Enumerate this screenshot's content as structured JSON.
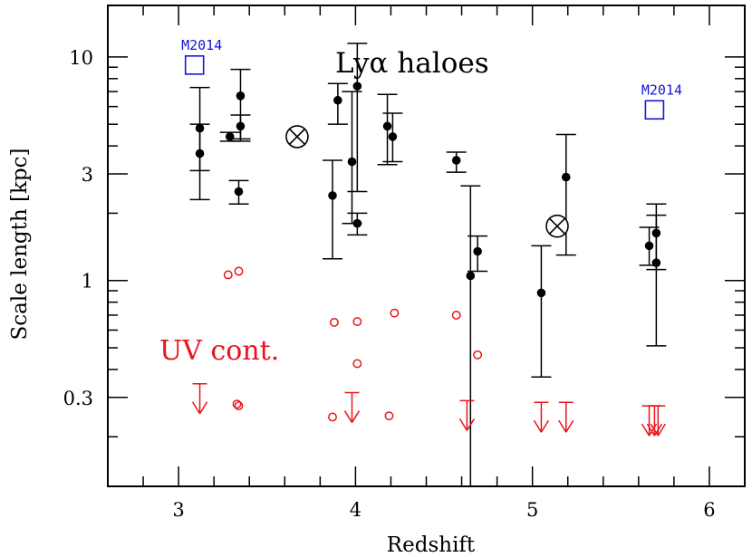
{
  "chart_data": {
    "type": "scatter",
    "xlabel": "Redshift",
    "ylabel": "Scale length [kpc]",
    "xlim": [
      2.6,
      6.2
    ],
    "ylim": [
      0.12,
      17
    ],
    "yscale": "log",
    "x_ticks": [
      3,
      4,
      5,
      6
    ],
    "x_tick_labels": [
      "3",
      "4",
      "5",
      "6"
    ],
    "y_ticks": [
      0.3,
      1,
      3,
      10
    ],
    "y_tick_labels": [
      "0.3",
      "1",
      "3",
      "10"
    ],
    "annotations": {
      "title": "Lyα haloes",
      "uv_label": "UV cont.",
      "m2014_label": "M2014"
    },
    "colors": {
      "halo": "#000000",
      "uv": "#e8141b",
      "m2014": "#1414d8"
    },
    "series": [
      {
        "marker": "filled-circle-with-errorbars",
        "points": [
          {
            "x": 3.12,
            "y": 4.8,
            "ylo": 3.1,
            "yhi": 7.3
          },
          {
            "x": 3.12,
            "y": 3.7,
            "ylo": 2.3,
            "yhi": 5.0
          },
          {
            "x": 3.29,
            "y": 4.4,
            "ylo": 4.2,
            "yhi": 4.6
          },
          {
            "x": 3.34,
            "y": 2.5,
            "ylo": 2.2,
            "yhi": 2.8
          },
          {
            "x": 3.35,
            "y": 6.7,
            "ylo": 4.3,
            "yhi": 8.8
          },
          {
            "x": 3.35,
            "y": 4.9,
            "ylo": 4.2,
            "yhi": 5.5
          },
          {
            "x": 3.87,
            "y": 2.4,
            "ylo": 1.25,
            "yhi": 3.45
          },
          {
            "x": 3.9,
            "y": 6.4,
            "ylo": 5.0,
            "yhi": 7.6
          },
          {
            "x": 3.98,
            "y": 3.4,
            "ylo": 1.8,
            "yhi": 7.0
          },
          {
            "x": 4.01,
            "y": 7.4,
            "ylo": 2.5,
            "yhi": 11.5
          },
          {
            "x": 4.01,
            "y": 1.8,
            "ylo": 1.6,
            "yhi": 2.0
          },
          {
            "x": 4.18,
            "y": 4.9,
            "ylo": 3.3,
            "yhi": 6.8
          },
          {
            "x": 4.21,
            "y": 4.4,
            "ylo": 3.4,
            "yhi": 5.6
          },
          {
            "x": 4.57,
            "y": 3.45,
            "ylo": 3.05,
            "yhi": 3.75
          },
          {
            "x": 4.65,
            "y": 1.05,
            "ylo": 0.12,
            "yhi": 2.65
          },
          {
            "x": 4.69,
            "y": 1.35,
            "ylo": 1.1,
            "yhi": 1.58
          },
          {
            "x": 5.05,
            "y": 0.88,
            "ylo": 0.37,
            "yhi": 1.43
          },
          {
            "x": 5.19,
            "y": 2.9,
            "ylo": 1.3,
            "yhi": 4.5
          },
          {
            "x": 5.66,
            "y": 1.43,
            "ylo": 1.17,
            "yhi": 1.73
          },
          {
            "x": 5.7,
            "y": 1.63,
            "ylo": 0.51,
            "yhi": 2.2
          },
          {
            "x": 5.7,
            "y": 1.2,
            "ylo": 1.12,
            "yhi": 1.96
          }
        ]
      },
      {
        "marker": "circled-x",
        "points": [
          {
            "x": 3.67,
            "y": 4.4
          },
          {
            "x": 5.14,
            "y": 1.75
          }
        ]
      },
      {
        "marker": "red-open-circle",
        "points": [
          {
            "x": 3.28,
            "y": 1.06
          },
          {
            "x": 3.34,
            "y": 1.1
          },
          {
            "x": 3.33,
            "y": 0.28
          },
          {
            "x": 3.34,
            "y": 0.275
          },
          {
            "x": 3.88,
            "y": 0.65
          },
          {
            "x": 4.01,
            "y": 0.655
          },
          {
            "x": 4.01,
            "y": 0.425
          },
          {
            "x": 3.87,
            "y": 0.245
          },
          {
            "x": 4.19,
            "y": 0.248
          },
          {
            "x": 4.22,
            "y": 0.715
          },
          {
            "x": 4.57,
            "y": 0.7
          },
          {
            "x": 4.69,
            "y": 0.465
          }
        ]
      },
      {
        "marker": "red-upper-limit-arrow",
        "points": [
          {
            "x": 3.12,
            "y": 0.345
          },
          {
            "x": 3.98,
            "y": 0.315
          },
          {
            "x": 4.63,
            "y": 0.29
          },
          {
            "x": 5.05,
            "y": 0.285
          },
          {
            "x": 5.19,
            "y": 0.285
          },
          {
            "x": 5.66,
            "y": 0.275
          },
          {
            "x": 5.69,
            "y": 0.275
          },
          {
            "x": 5.71,
            "y": 0.275
          }
        ]
      },
      {
        "marker": "blue-open-square",
        "name": "M2014",
        "points": [
          {
            "x": 3.09,
            "y": 9.2
          },
          {
            "x": 5.69,
            "y": 5.8
          }
        ]
      }
    ]
  }
}
